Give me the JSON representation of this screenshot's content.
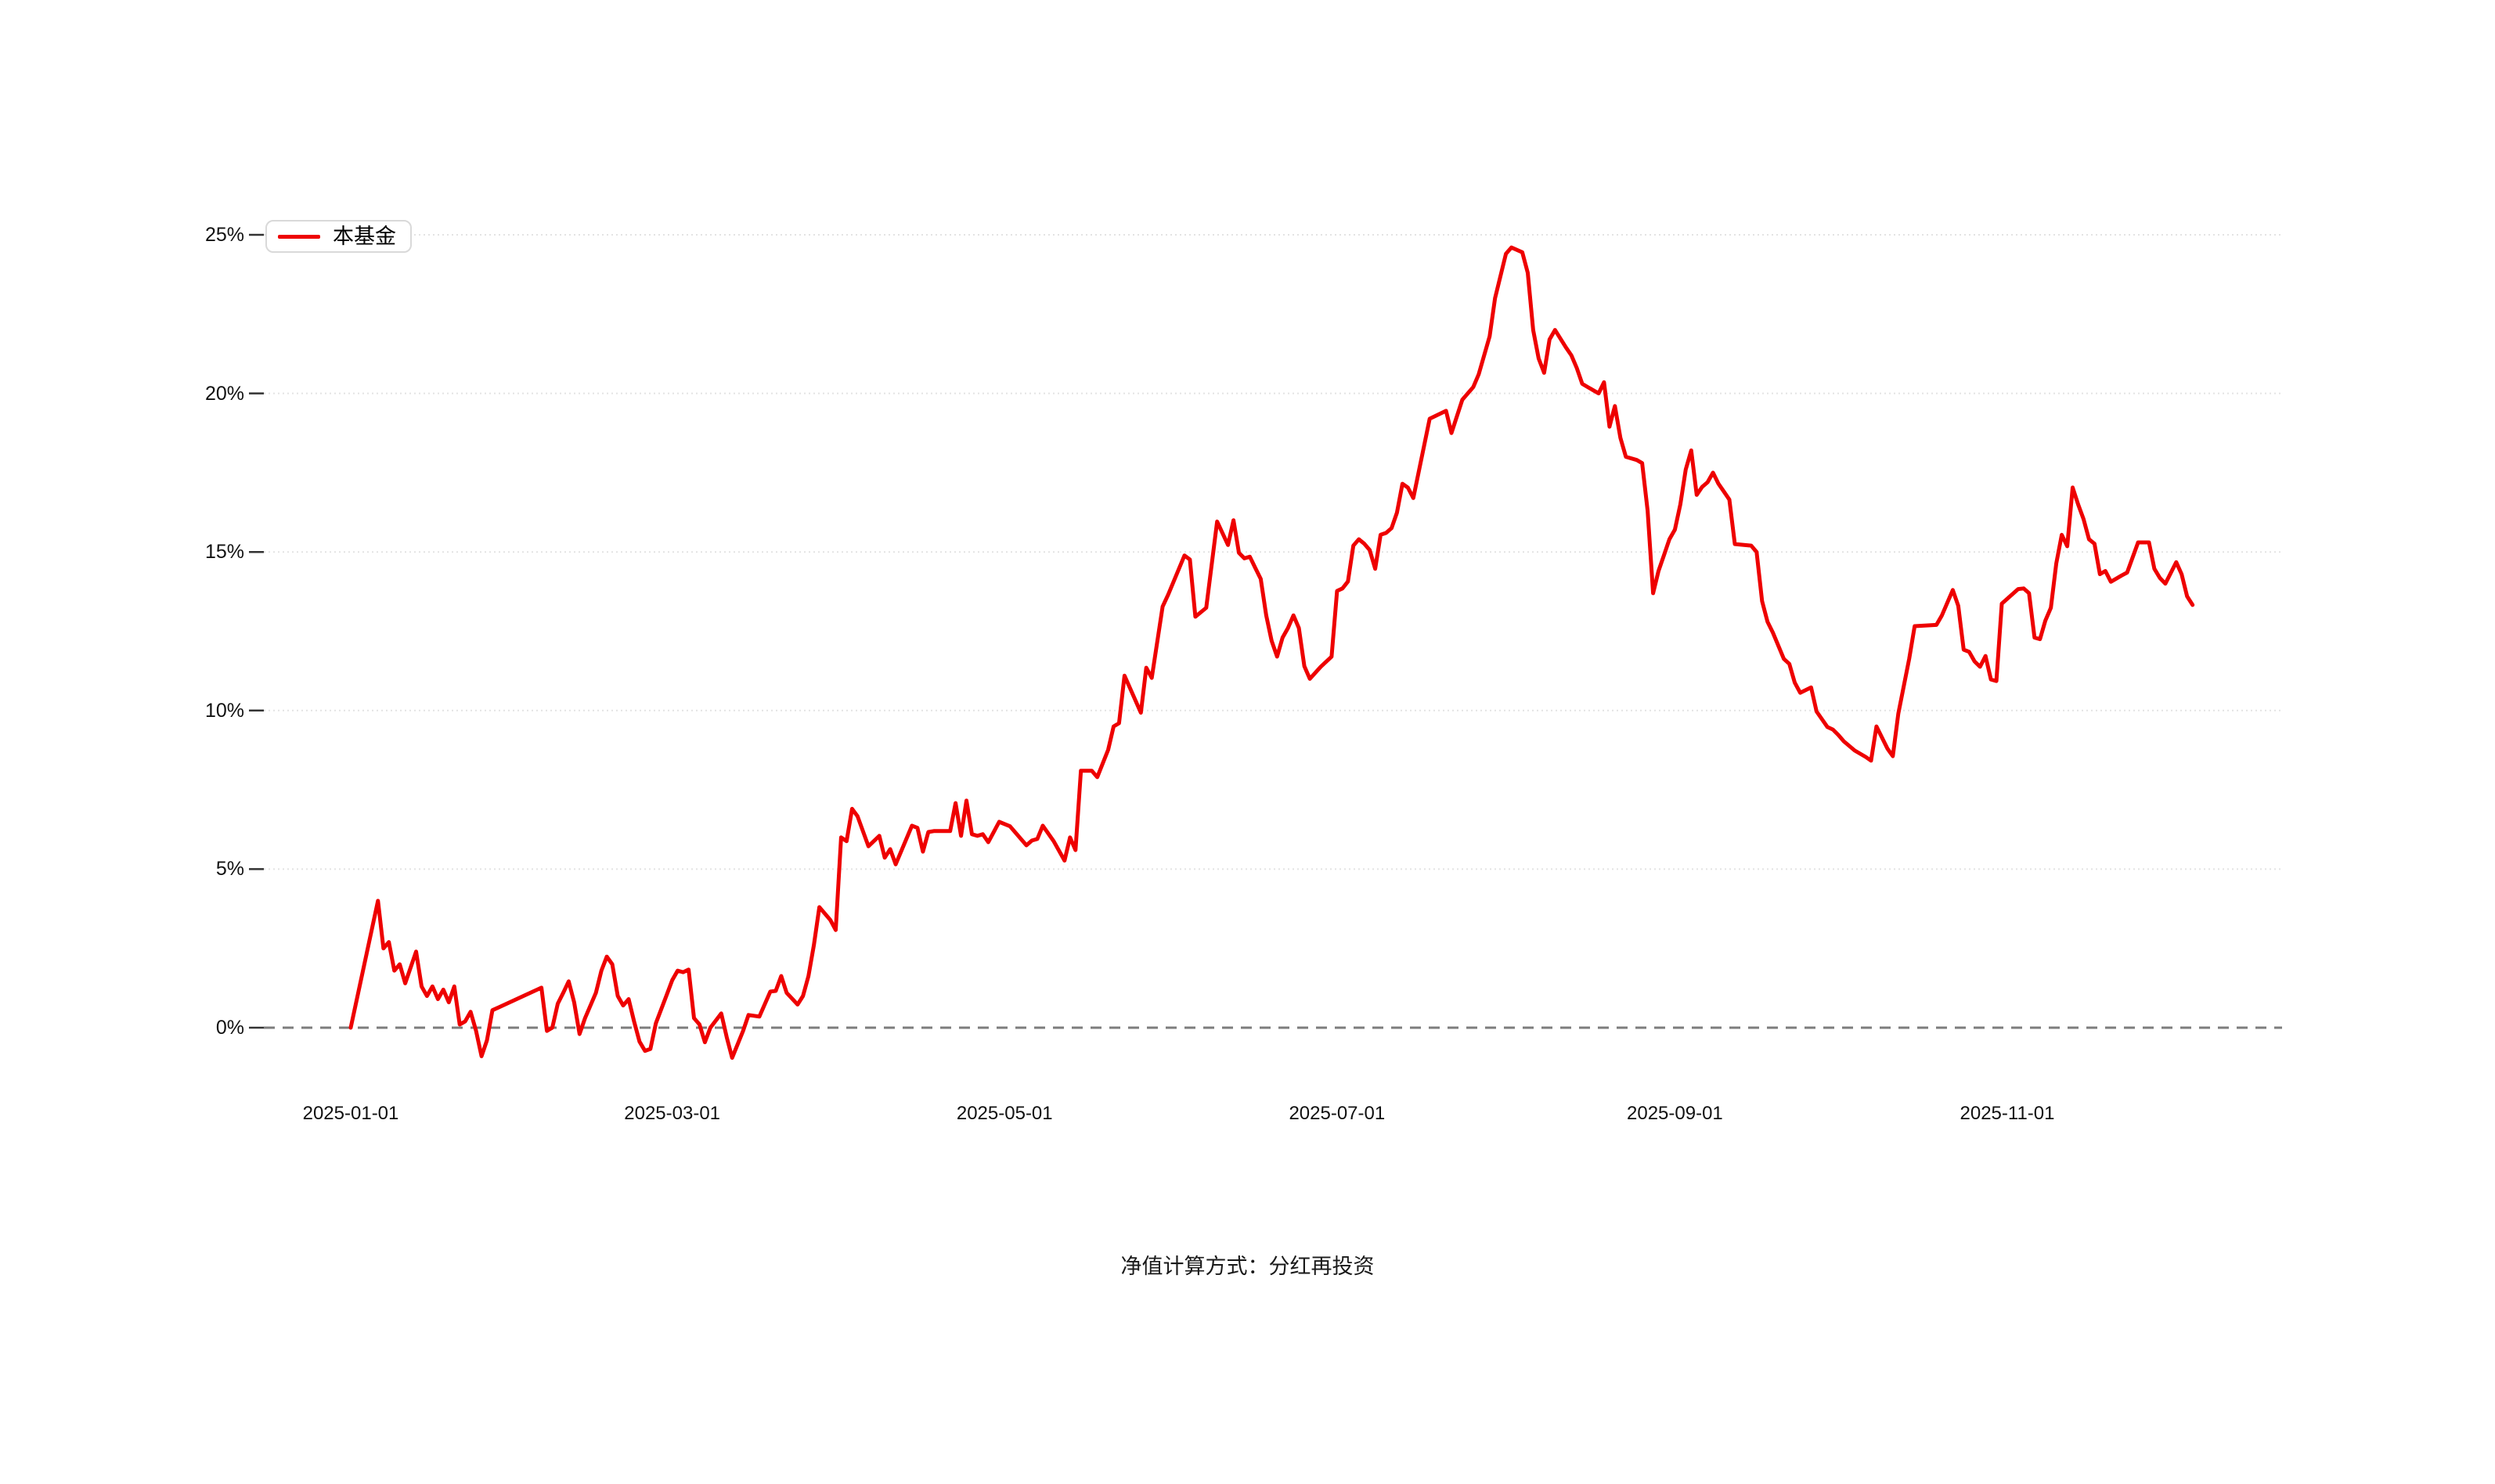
{
  "chart_data": {
    "type": "line",
    "title": "",
    "xlabel": "",
    "ylabel": "",
    "footnote": "净值计算方式：分红再投资",
    "legend_position": "top-left",
    "grid": "dotted horizontal gridlines at each 5% level",
    "grid_color": "#e3e3e3",
    "zero_line": {
      "style": "dashed",
      "color": "#7d7d7d"
    },
    "x_axis": {
      "unit": "date",
      "start_date": "2025-01-01",
      "end_date": "2025-12-05",
      "tick_labels": [
        "2025-01-01",
        "2025-03-01",
        "2025-05-01",
        "2025-07-01",
        "2025-09-01",
        "2025-11-01"
      ],
      "tick_day_offsets": [
        0,
        59,
        120,
        181,
        243,
        304
      ],
      "x_range_days": [
        0,
        338
      ]
    },
    "y_axis": {
      "unit": "percent",
      "tick_labels": [
        "0%",
        "5%",
        "10%",
        "15%",
        "20%",
        "25%"
      ],
      "tick_values": [
        0,
        5,
        10,
        15,
        20,
        25
      ],
      "ylim": [
        -2.5,
        26
      ]
    },
    "series": [
      {
        "name": "本基金",
        "color": "#ee0000",
        "points_format": "[days_since_2025-01-01, cumulative_return_percent]",
        "points": [
          [
            0,
            0
          ],
          [
            5,
            4
          ],
          [
            6,
            2.5
          ],
          [
            7,
            2.7
          ],
          [
            8,
            1.8
          ],
          [
            9,
            2
          ],
          [
            10,
            1.4
          ],
          [
            12,
            2.4
          ],
          [
            13,
            1.3
          ],
          [
            14,
            1
          ],
          [
            15,
            1.3
          ],
          [
            16,
            0.9
          ],
          [
            17,
            1.2
          ],
          [
            18,
            0.8
          ],
          [
            19,
            1.3
          ],
          [
            20,
            0.1
          ],
          [
            21,
            0.2
          ],
          [
            22,
            0.5
          ],
          [
            23,
            -0.1
          ],
          [
            24,
            -0.9
          ],
          [
            25,
            -0.4
          ],
          [
            26,
            0.55
          ],
          [
            35,
            1.26
          ],
          [
            36,
            -0.1
          ],
          [
            37,
            0
          ],
          [
            38,
            0.76
          ],
          [
            39,
            1.1
          ],
          [
            40,
            1.46
          ],
          [
            41,
            0.8
          ],
          [
            42,
            -0.2
          ],
          [
            43,
            0.3
          ],
          [
            45,
            1.1
          ],
          [
            46,
            1.8
          ],
          [
            47,
            2.24
          ],
          [
            48,
            2
          ],
          [
            49,
            1
          ],
          [
            50,
            0.7
          ],
          [
            51,
            0.9
          ],
          [
            52,
            0.2
          ],
          [
            53,
            -0.44
          ],
          [
            54,
            -0.73
          ],
          [
            55,
            -0.67
          ],
          [
            56,
            0.14
          ],
          [
            58,
            1.04
          ],
          [
            59,
            1.5
          ],
          [
            60,
            1.8
          ],
          [
            61,
            1.75
          ],
          [
            62,
            1.83
          ],
          [
            63,
            0.3
          ],
          [
            64,
            0.1
          ],
          [
            65,
            -0.46
          ],
          [
            66,
            0
          ],
          [
            68,
            0.45
          ],
          [
            69,
            -0.3
          ],
          [
            70,
            -0.95
          ],
          [
            72,
            -0.1
          ],
          [
            73,
            0.4
          ],
          [
            75,
            0.35
          ],
          [
            77,
            1.14
          ],
          [
            78,
            1.16
          ],
          [
            79,
            1.63
          ],
          [
            80,
            1.1
          ],
          [
            82,
            0.73
          ],
          [
            83,
            1
          ],
          [
            84,
            1.63
          ],
          [
            85,
            2.6
          ],
          [
            86,
            3.8
          ],
          [
            88,
            3.4
          ],
          [
            89,
            3.08
          ],
          [
            90,
            6
          ],
          [
            91,
            5.88
          ],
          [
            92,
            6.9
          ],
          [
            93,
            6.67
          ],
          [
            95,
            5.72
          ],
          [
            97,
            6.05
          ],
          [
            98,
            5.36
          ],
          [
            99,
            5.63
          ],
          [
            100,
            5.15
          ],
          [
            103,
            6.37
          ],
          [
            104,
            6.3
          ],
          [
            105,
            5.55
          ],
          [
            106,
            6.17
          ],
          [
            107,
            6.2
          ],
          [
            110,
            6.2
          ],
          [
            111,
            7.08
          ],
          [
            112,
            6.05
          ],
          [
            113,
            7.16
          ],
          [
            114,
            6.1
          ],
          [
            115,
            6.05
          ],
          [
            116,
            6.1
          ],
          [
            117,
            5.85
          ],
          [
            119,
            6.49
          ],
          [
            121,
            6.35
          ],
          [
            123,
            5.95
          ],
          [
            124,
            5.75
          ],
          [
            125,
            5.9
          ],
          [
            126,
            5.95
          ],
          [
            127,
            6.37
          ],
          [
            129,
            5.88
          ],
          [
            131,
            5.27
          ],
          [
            132,
            6
          ],
          [
            133,
            5.6
          ],
          [
            134,
            8.1
          ],
          [
            136,
            8.1
          ],
          [
            137,
            7.9
          ],
          [
            139,
            8.76
          ],
          [
            140,
            9.5
          ],
          [
            141,
            9.6
          ],
          [
            142,
            11.1
          ],
          [
            145,
            9.93
          ],
          [
            146,
            11.35
          ],
          [
            147,
            11.03
          ],
          [
            149,
            13.28
          ],
          [
            150,
            13.65
          ],
          [
            153,
            14.89
          ],
          [
            154,
            14.76
          ],
          [
            155,
            12.96
          ],
          [
            157,
            13.24
          ],
          [
            159,
            15.96
          ],
          [
            161,
            15.22
          ],
          [
            162,
            16
          ],
          [
            163,
            14.97
          ],
          [
            164,
            14.8
          ],
          [
            165,
            14.85
          ],
          [
            166,
            14.5
          ],
          [
            167,
            14.15
          ],
          [
            168,
            13
          ],
          [
            169,
            12.2
          ],
          [
            170,
            11.7
          ],
          [
            171,
            12.3
          ],
          [
            172,
            12.6
          ],
          [
            173,
            13
          ],
          [
            174,
            12.6
          ],
          [
            175,
            11.4
          ],
          [
            176,
            11
          ],
          [
            178,
            11.38
          ],
          [
            180,
            11.7
          ],
          [
            181,
            13.77
          ],
          [
            182,
            13.85
          ],
          [
            183,
            14.07
          ],
          [
            184,
            15.2
          ],
          [
            185,
            15.4
          ],
          [
            186,
            15.26
          ],
          [
            187,
            15.06
          ],
          [
            188,
            14.47
          ],
          [
            189,
            15.54
          ],
          [
            190,
            15.6
          ],
          [
            191,
            15.75
          ],
          [
            192,
            16.24
          ],
          [
            193,
            17.15
          ],
          [
            194,
            17.03
          ],
          [
            195,
            16.7
          ],
          [
            198,
            19.2
          ],
          [
            201,
            19.45
          ],
          [
            202,
            18.75
          ],
          [
            204,
            19.8
          ],
          [
            206,
            20.2
          ],
          [
            207,
            20.6
          ],
          [
            209,
            21.8
          ],
          [
            210,
            23
          ],
          [
            212,
            24.4
          ],
          [
            213,
            24.6
          ],
          [
            215,
            24.45
          ],
          [
            216,
            23.8
          ],
          [
            217,
            22
          ],
          [
            218,
            21.1
          ],
          [
            219,
            20.65
          ],
          [
            220,
            21.7
          ],
          [
            221,
            22
          ],
          [
            223,
            21.45
          ],
          [
            224,
            21.2
          ],
          [
            225,
            20.8
          ],
          [
            226,
            20.3
          ],
          [
            227,
            20.2
          ],
          [
            229,
            20
          ],
          [
            230,
            20.35
          ],
          [
            231,
            18.95
          ],
          [
            232,
            19.6
          ],
          [
            233,
            18.6
          ],
          [
            234,
            18
          ],
          [
            236,
            17.9
          ],
          [
            237,
            17.8
          ],
          [
            238,
            16.3
          ],
          [
            239,
            13.7
          ],
          [
            240,
            14.4
          ],
          [
            241,
            14.9
          ],
          [
            242,
            15.4
          ],
          [
            243,
            15.7
          ],
          [
            244,
            16.5
          ],
          [
            245,
            17.6
          ],
          [
            246,
            18.2
          ],
          [
            247,
            16.8
          ],
          [
            248,
            17.05
          ],
          [
            249,
            17.2
          ],
          [
            250,
            17.5
          ],
          [
            251,
            17.15
          ],
          [
            252,
            16.9
          ],
          [
            253,
            16.65
          ],
          [
            254,
            15.25
          ],
          [
            257,
            15.2
          ],
          [
            258,
            15
          ],
          [
            259,
            13.45
          ],
          [
            260,
            12.8
          ],
          [
            261,
            12.45
          ],
          [
            263,
            11.63
          ],
          [
            264,
            11.47
          ],
          [
            265,
            10.88
          ],
          [
            266,
            10.56
          ],
          [
            268,
            10.73
          ],
          [
            269,
            9.97
          ],
          [
            271,
            9.48
          ],
          [
            272,
            9.4
          ],
          [
            273,
            9.23
          ],
          [
            274,
            9.03
          ],
          [
            276,
            8.74
          ],
          [
            278,
            8.54
          ],
          [
            279,
            8.42
          ],
          [
            280,
            9.5
          ],
          [
            282,
            8.8
          ],
          [
            283,
            8.56
          ],
          [
            284,
            9.9
          ],
          [
            286,
            11.63
          ],
          [
            287,
            12.66
          ],
          [
            291,
            12.7
          ],
          [
            292,
            13
          ],
          [
            294,
            13.8
          ],
          [
            295,
            13.3
          ],
          [
            296,
            11.92
          ],
          [
            297,
            11.85
          ],
          [
            298,
            11.55
          ],
          [
            299,
            11.38
          ],
          [
            300,
            11.72
          ],
          [
            301,
            10.98
          ],
          [
            302,
            10.93
          ],
          [
            303,
            13.37
          ],
          [
            306,
            13.83
          ],
          [
            307,
            13.85
          ],
          [
            308,
            13.7
          ],
          [
            309,
            12.3
          ],
          [
            310,
            12.25
          ],
          [
            311,
            12.84
          ],
          [
            312,
            13.24
          ],
          [
            313,
            14.64
          ],
          [
            314,
            15.54
          ],
          [
            315,
            15.18
          ],
          [
            316,
            17.03
          ],
          [
            317,
            16.5
          ],
          [
            318,
            16.04
          ],
          [
            319,
            15.4
          ],
          [
            320,
            15.26
          ],
          [
            321,
            14.3
          ],
          [
            322,
            14.4
          ],
          [
            323,
            14.06
          ],
          [
            325,
            14.26
          ],
          [
            326,
            14.35
          ],
          [
            328,
            15.3
          ],
          [
            330,
            15.3
          ],
          [
            331,
            14.47
          ],
          [
            332,
            14.18
          ],
          [
            333,
            14
          ],
          [
            335,
            14.68
          ],
          [
            336,
            14.3
          ],
          [
            337,
            13.6
          ],
          [
            338,
            13.33
          ]
        ]
      }
    ]
  }
}
